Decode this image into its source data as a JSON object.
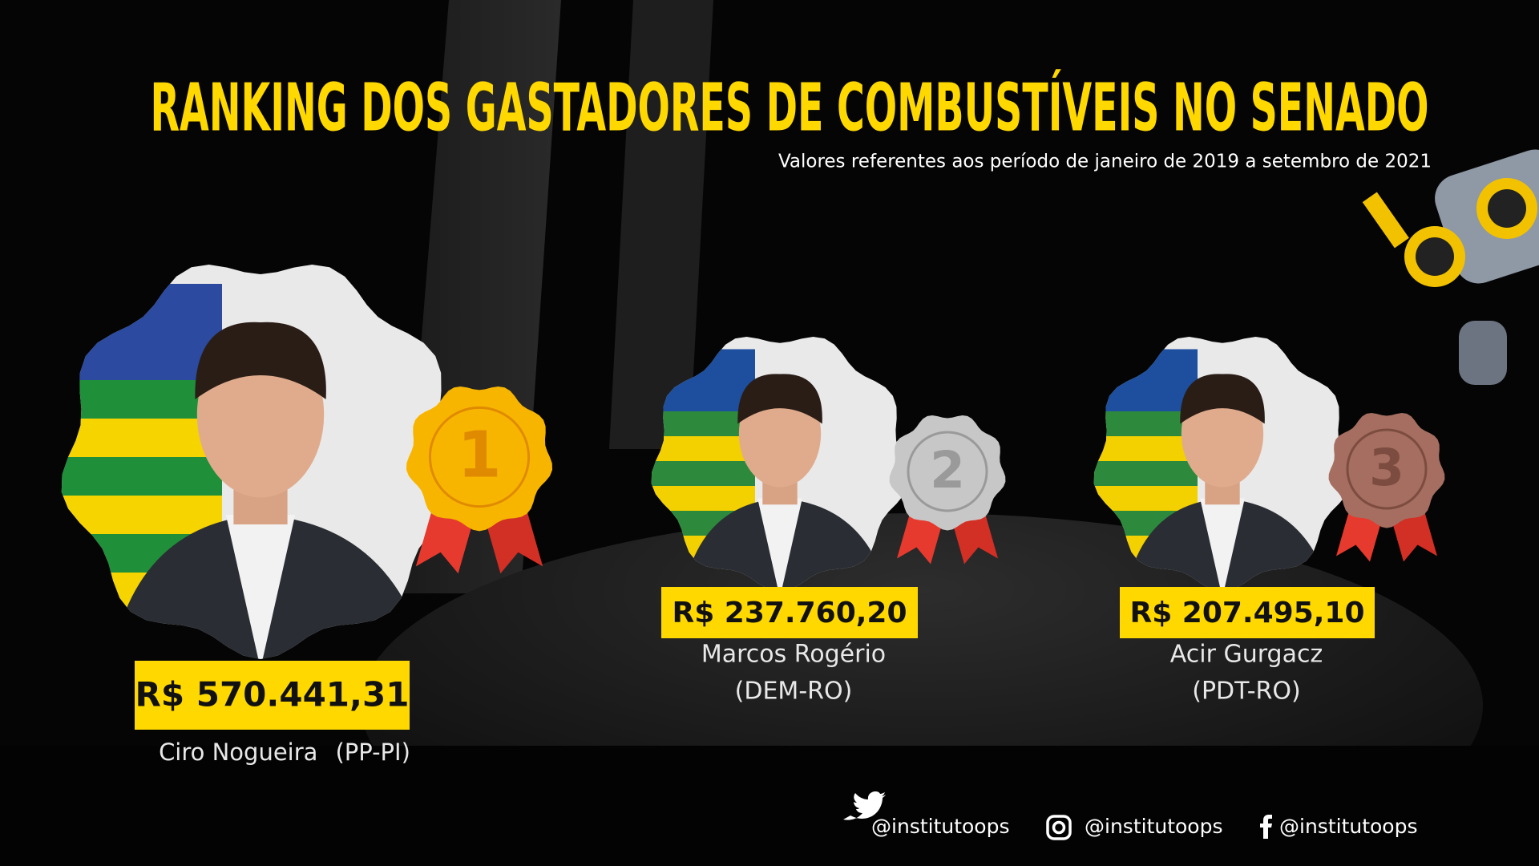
{
  "header": {
    "title": "RANKING DOS GASTADORES DE COMBUSTÍVEIS NO SENADO",
    "subtitle": "Valores  referentes aos período de janeiro de 2019 a setembro de 2021"
  },
  "ranking": [
    {
      "rank": "1",
      "amount": "R$ 570.441,31",
      "name": "Ciro Nogueira",
      "party": "(PP-PI)"
    },
    {
      "rank": "2",
      "amount": "R$ 237.760,20",
      "name": "Marcos Rogério",
      "party": "(DEM-RO)"
    },
    {
      "rank": "3",
      "amount": "R$ 207.495,10",
      "name": "Acir Gurgacz",
      "party": "(PDT-RO)"
    }
  ],
  "footer": {
    "twitter": "@institutoops",
    "instagram": "@institutoops",
    "facebook": "@institutoops"
  }
}
